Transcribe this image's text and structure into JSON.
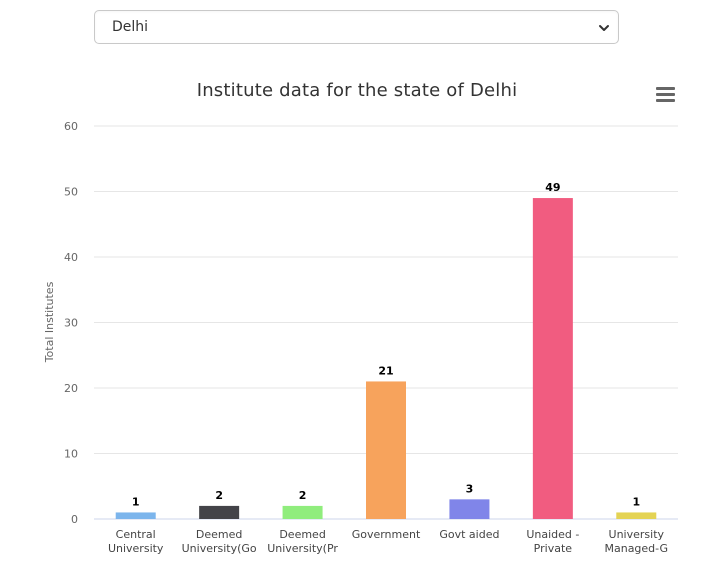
{
  "state_select": {
    "value": "Delhi"
  },
  "chart_data": {
    "type": "bar",
    "title": "Institute data for the state of Delhi",
    "xlabel": "",
    "ylabel": "Total Institutes",
    "ylim": [
      0,
      60
    ],
    "yticks": [
      0,
      10,
      20,
      30,
      40,
      50,
      60
    ],
    "grid": true,
    "legend": "none",
    "categories": [
      [
        "Central",
        "University"
      ],
      [
        "Deemed",
        "University(Go"
      ],
      [
        "Deemed",
        "University(Pr"
      ],
      [
        "Government"
      ],
      [
        "Govt aided"
      ],
      [
        "Unaided -",
        "Private"
      ],
      [
        "University",
        "Managed-G"
      ]
    ],
    "values": [
      1,
      2,
      2,
      21,
      3,
      49,
      1
    ],
    "colors": [
      "#7cb5ec",
      "#434348",
      "#90ed7d",
      "#f7a35c",
      "#8085e9",
      "#f15c80",
      "#e4d354"
    ]
  },
  "icons": {
    "select_arrow": "chevron-down-icon",
    "menu": "hamburger-menu-icon"
  }
}
